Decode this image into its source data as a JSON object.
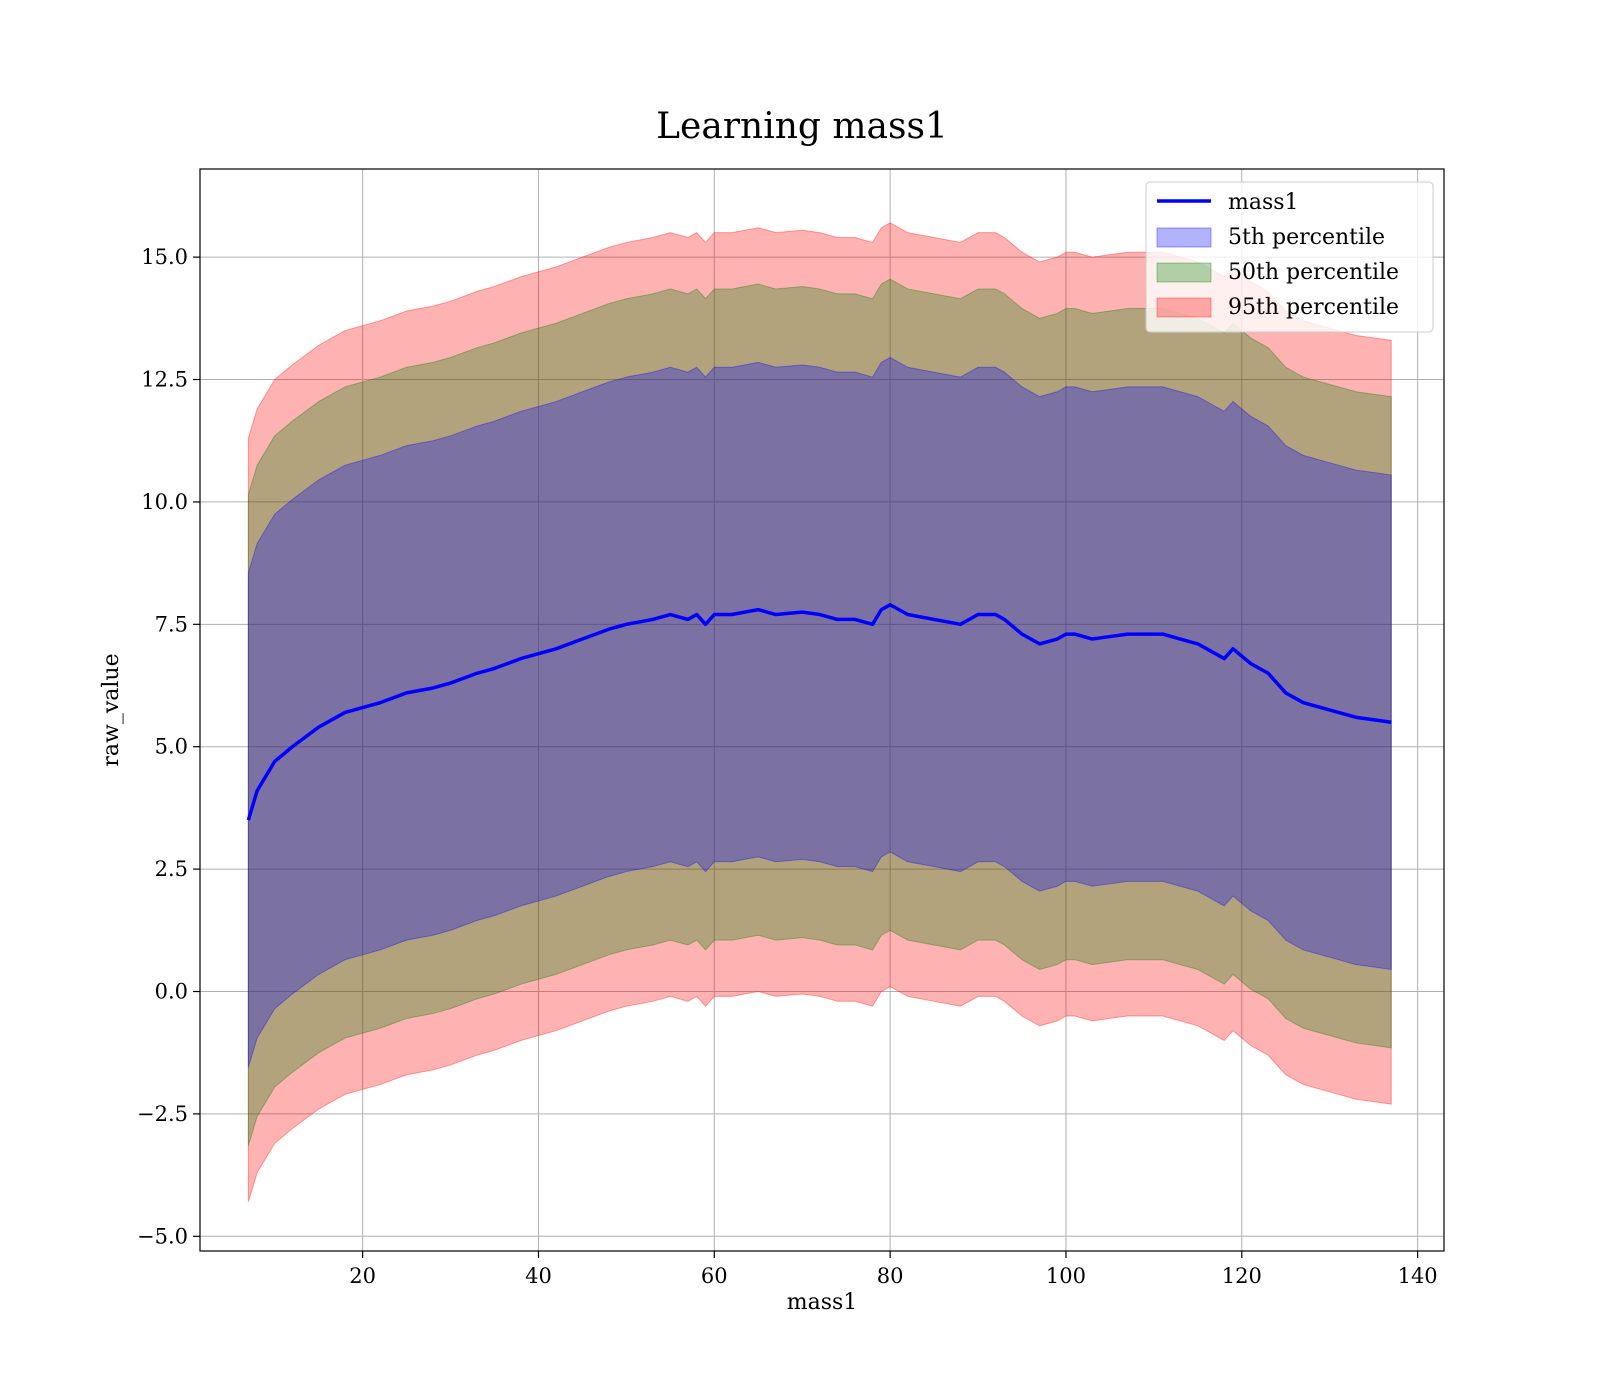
{
  "chart_data": {
    "type": "area",
    "title": "Learning mass1",
    "xlabel": "mass1",
    "ylabel": "raw_value",
    "xlim": [
      1.5,
      143
    ],
    "ylim": [
      -5.3,
      16.8
    ],
    "grid": true,
    "legend_position": "top-right",
    "x_ticks": [
      20,
      40,
      60,
      80,
      100,
      120,
      140
    ],
    "x_tick_labels": [
      "20",
      "40",
      "60",
      "80",
      "100",
      "120",
      "140"
    ],
    "y_ticks": [
      -5.0,
      -2.5,
      0.0,
      2.5,
      5.0,
      7.5,
      10.0,
      12.5,
      15.0
    ],
    "y_tick_labels": [
      "−5.0",
      "−2.5",
      "0.0",
      "2.5",
      "5.0",
      "7.5",
      "10.0",
      "12.5",
      "15.0"
    ],
    "colors": {
      "line": "#0000ff",
      "band_5th": "#0000ff",
      "band_50th": "#008000",
      "band_95th": "#ff0000",
      "grid": "#b0b0b0"
    },
    "x": [
      7,
      8,
      10,
      12,
      15,
      18,
      20,
      22,
      25,
      28,
      30,
      33,
      35,
      38,
      40,
      42,
      45,
      48,
      50,
      53,
      55,
      57,
      58,
      59,
      60,
      62,
      65,
      67,
      70,
      72,
      74,
      76,
      78,
      79,
      80,
      82,
      85,
      88,
      90,
      92,
      93,
      95,
      97,
      99,
      100,
      101,
      103,
      105,
      107,
      109,
      111,
      113,
      115,
      117,
      118,
      119,
      121,
      123,
      125,
      127,
      129,
      131,
      133,
      135,
      137
    ],
    "series": [
      {
        "name": "mass1",
        "kind": "line",
        "values": [
          3.5,
          4.1,
          4.7,
          5.0,
          5.4,
          5.7,
          5.8,
          5.9,
          6.1,
          6.2,
          6.3,
          6.5,
          6.6,
          6.8,
          6.9,
          7.0,
          7.2,
          7.4,
          7.5,
          7.6,
          7.7,
          7.6,
          7.7,
          7.5,
          7.7,
          7.7,
          7.8,
          7.7,
          7.75,
          7.7,
          7.6,
          7.6,
          7.5,
          7.8,
          7.9,
          7.7,
          7.6,
          7.5,
          7.7,
          7.7,
          7.6,
          7.3,
          7.1,
          7.2,
          7.3,
          7.3,
          7.2,
          7.25,
          7.3,
          7.3,
          7.3,
          7.2,
          7.1,
          6.9,
          6.8,
          7.0,
          6.7,
          6.5,
          6.1,
          5.9,
          5.8,
          5.7,
          5.6,
          5.55,
          5.5
        ]
      },
      {
        "name": "5th percentile",
        "kind": "band",
        "offset": 5.05
      },
      {
        "name": "50th percentile",
        "kind": "band",
        "offset": 6.65
      },
      {
        "name": "95th percentile",
        "kind": "band",
        "offset": 7.8
      }
    ]
  }
}
